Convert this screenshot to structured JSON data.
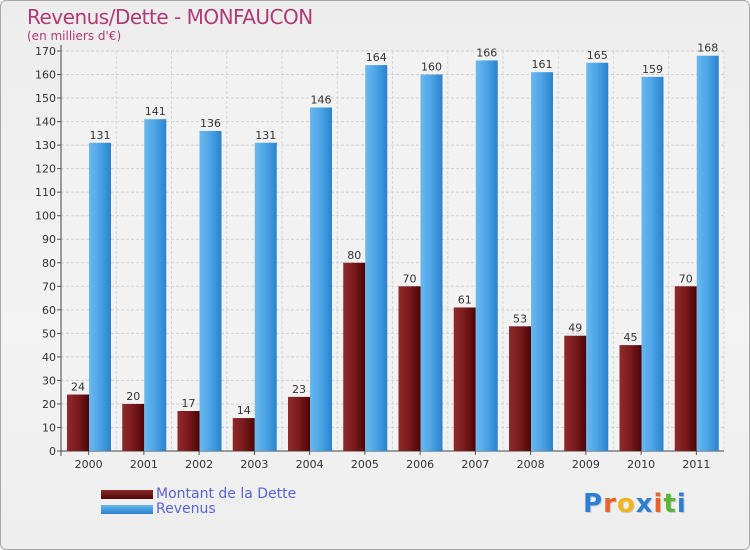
{
  "header": {
    "title": "Revenus/Dette - MONFAUCON",
    "subtitle": "(en milliers d'€)"
  },
  "legend": {
    "items": [
      {
        "label": "Montant de la Dette",
        "color": "#6b1012"
      },
      {
        "label": "Revenus",
        "color": "#3e9ae0"
      }
    ]
  },
  "logo": {
    "letters": [
      "P",
      "r",
      "o",
      "x",
      "i",
      "t",
      "i"
    ],
    "colors": [
      "#2d7fd6",
      "#e8622c",
      "#f2b31f",
      "#2d7fd6",
      "#e8622c",
      "#5bb53b",
      "#2d7fd6"
    ]
  },
  "chart_data": {
    "type": "bar",
    "title": "Revenus/Dette - MONFAUCON",
    "ylabel": "(en milliers d'€)",
    "xlabel": "",
    "ylim": [
      0,
      170
    ],
    "yticks": [
      0,
      10,
      20,
      30,
      40,
      50,
      60,
      70,
      80,
      90,
      100,
      110,
      120,
      130,
      140,
      150,
      160,
      170
    ],
    "categories": [
      "2000",
      "2001",
      "2002",
      "2003",
      "2004",
      "2005",
      "2006",
      "2007",
      "2008",
      "2009",
      "2010",
      "2011"
    ],
    "series": [
      {
        "name": "Montant de la Dette",
        "color": "#7a1a1c",
        "values": [
          24,
          20,
          17,
          14,
          23,
          80,
          70,
          61,
          53,
          49,
          45,
          70
        ]
      },
      {
        "name": "Revenus",
        "color": "#4ba3e6",
        "values": [
          131,
          141,
          136,
          131,
          146,
          164,
          160,
          166,
          161,
          165,
          159,
          168
        ]
      }
    ],
    "grid": true,
    "legend_position": "bottom-left"
  }
}
